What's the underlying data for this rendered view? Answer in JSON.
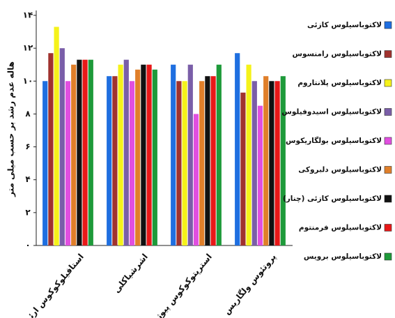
{
  "chart_data": {
    "type": "bar",
    "y_label": "هاله عدم رشد بر حسب میلی متر",
    "categories": [
      "استافیلوکوکوس ارئوس",
      "اشرشیاکلی",
      "استرپتوکوکوس پیوژنز",
      "پروتئوس ولگاریس"
    ],
    "ylim": [
      0,
      14
    ],
    "yticks": [
      {
        "value": 0,
        "label": "۰"
      },
      {
        "value": 2,
        "label": "۲"
      },
      {
        "value": 4,
        "label": "۴"
      },
      {
        "value": 6,
        "label": "۶"
      },
      {
        "value": 8,
        "label": "۸"
      },
      {
        "value": 10,
        "label": "۱۰"
      },
      {
        "value": 12,
        "label": "۱۲"
      },
      {
        "value": 14,
        "label": "۱۴"
      }
    ],
    "series": [
      {
        "name": "لاکتوباسیلوس کازئی",
        "color": "#1f6fe0",
        "values": [
          10,
          10.3,
          11,
          11.7
        ]
      },
      {
        "name": "لاکتوباسیلوس رامنسوس",
        "color": "#a0322e",
        "values": [
          11.7,
          10.3,
          10,
          9.3
        ]
      },
      {
        "name": "لاکتوباسیلوس پلانتاروم",
        "color": "#f5f21a",
        "values": [
          13.3,
          11,
          10,
          11
        ]
      },
      {
        "name": "لاکتوباسیلوس اسیدوفیلوس",
        "color": "#7a5ea8",
        "values": [
          12,
          11.3,
          11,
          10
        ]
      },
      {
        "name": "لاکتوباسیلوس بولگاریکوس",
        "color": "#e14fe0",
        "values": [
          10,
          10,
          8,
          8.5
        ]
      },
      {
        "name": "لاکتوباسیلوس دلبروکی",
        "color": "#e07f2a",
        "values": [
          11,
          10.7,
          10,
          10.3
        ]
      },
      {
        "name": "لاکتوباسیلوس کازئی (چنار)",
        "color": "#111111",
        "values": [
          11.3,
          11,
          10.3,
          10
        ]
      },
      {
        "name": "لاکتوباسیلوس فرمنتوم",
        "color": "#e81818",
        "values": [
          11.3,
          11,
          10.3,
          10
        ]
      },
      {
        "name": "لاکتوباسیلوس برویس",
        "color": "#1e9a3a",
        "values": [
          11.3,
          10.7,
          11,
          10.3
        ]
      }
    ]
  }
}
